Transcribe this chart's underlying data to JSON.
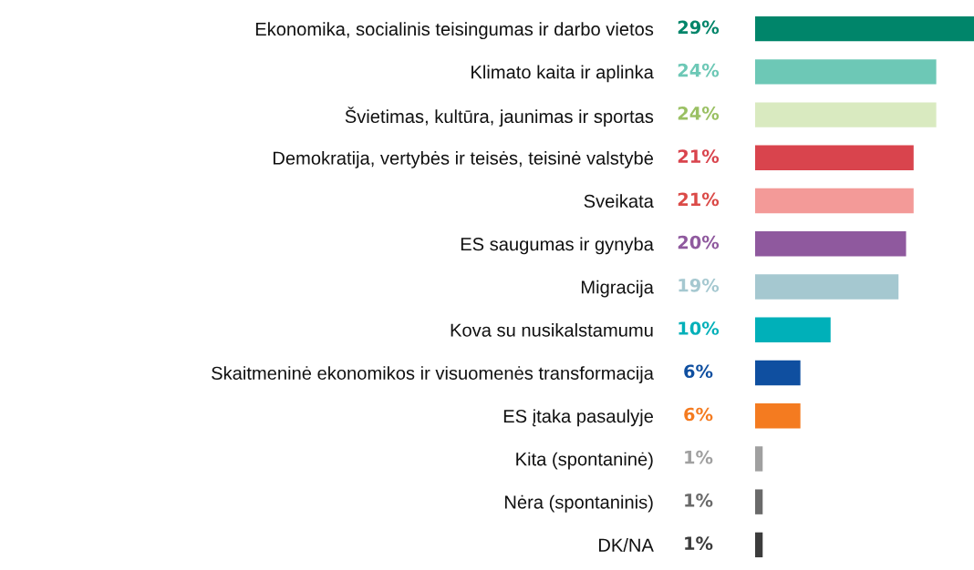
{
  "chart_data": {
    "type": "bar",
    "orientation": "horizontal",
    "categories": [
      "Ekonomika, socialinis teisingumas ir darbo vietos",
      "Klimato kaita ir aplinka",
      "Švietimas, kultūra, jaunimas ir sportas",
      "Demokratija, vertybės ir teisės, teisinė valstybė",
      "Sveikata",
      "ES saugumas ir gynyba",
      "Migracija",
      "Kova su nusikalstamumu",
      "Skaitmeninė ekonomikos ir visuomenės transformacija",
      "ES įtaka pasaulyje",
      "Kita (spontaninė)",
      "Nėra (spontaninis)",
      "DK/NA"
    ],
    "values": [
      29,
      24,
      24,
      21,
      21,
      20,
      19,
      10,
      6,
      6,
      1,
      1,
      1
    ],
    "colors": [
      "#00856a",
      "#6dc8b6",
      "#d9eac0",
      "#d9444d",
      "#f39a98",
      "#8f599e",
      "#a5c8d0",
      "#00b0b9",
      "#0f4fa0",
      "#f47b20",
      "#a0a0a0",
      "#6a6a6a",
      "#3c3c3c"
    ],
    "value_labels": [
      "29%",
      "24%",
      "24%",
      "21%",
      "21%",
      "20%",
      "19%",
      "10%",
      "6%",
      "6%",
      "1%",
      "1%",
      "1%"
    ]
  }
}
